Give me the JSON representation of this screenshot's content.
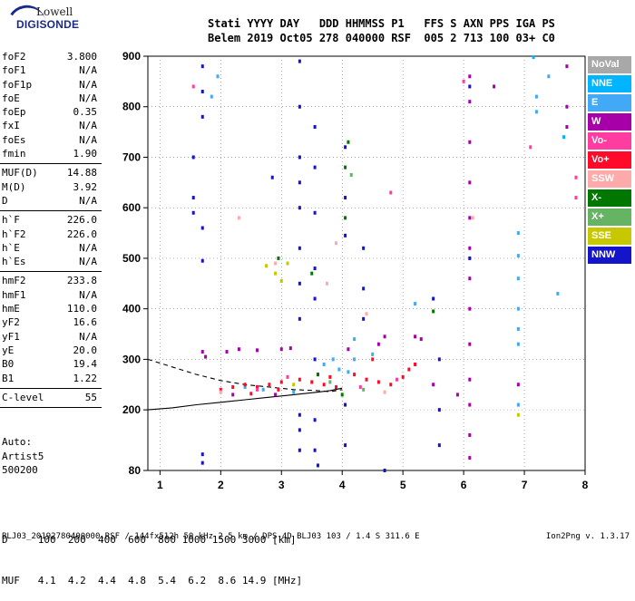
{
  "logo": {
    "line1": "Lowell",
    "line2": "DIGISONDE"
  },
  "header": {
    "row1": "Stati YYYY DAY   DDD HHMMSS P1   FFS S AXN PPS IGA PS",
    "row2": "Belem 2019 Oct05 278 040000 RSF  005 2 713 100 03+ C0"
  },
  "params": [
    {
      "label": "foF2",
      "value": "3.800"
    },
    {
      "label": "foF1",
      "value": "N/A"
    },
    {
      "label": "foF1p",
      "value": "N/A"
    },
    {
      "label": "foE",
      "value": "N/A"
    },
    {
      "label": "foEp",
      "value": "0.35"
    },
    {
      "label": "fxI",
      "value": "N/A"
    },
    {
      "label": "foEs",
      "value": "N/A"
    },
    {
      "label": "fmin",
      "value": "1.90"
    },
    {
      "sep": true
    },
    {
      "label": "MUF(D)",
      "value": "14.88"
    },
    {
      "label": "M(D)",
      "value": "3.92"
    },
    {
      "label": "D",
      "value": "N/A"
    },
    {
      "sep": true
    },
    {
      "label": "h`F",
      "value": "226.0"
    },
    {
      "label": "h`F2",
      "value": "226.0"
    },
    {
      "label": "h`E",
      "value": "N/A"
    },
    {
      "label": "h`Es",
      "value": "N/A"
    },
    {
      "sep": true
    },
    {
      "label": "hmF2",
      "value": "233.8"
    },
    {
      "label": "hmF1",
      "value": "N/A"
    },
    {
      "label": "hmE",
      "value": "110.0"
    },
    {
      "label": "yF2",
      "value": "16.6"
    },
    {
      "label": "yF1",
      "value": "N/A"
    },
    {
      "label": "yE",
      "value": "20.0"
    },
    {
      "label": "B0",
      "value": "19.4"
    },
    {
      "label": "B1",
      "value": "1.22"
    },
    {
      "sep": true
    },
    {
      "label": "C-level",
      "value": "55"
    },
    {
      "sep": true
    }
  ],
  "auto": {
    "line1": "Auto:",
    "line2": "Artist5",
    "line3": "500200"
  },
  "footer": {
    "d_row": "D     100  200  400  600  800 1000 1500 3000 [km]",
    "muf_row": "MUF   4.1  4.2  4.4  4.8  5.4  6.2  8.6 14.9 [MHz]"
  },
  "bottom_line": "BLJ03_20192780400000.RSF / 144fx512h 50 kHz 2.5 km / DPS-4D BLJ03 103 / 1.4 S 311.6 E",
  "version": "Ion2Png v. 1.3.17",
  "legend": [
    {
      "label": "NoVal",
      "color": "#a8a8a8"
    },
    {
      "label": "NNE",
      "color": "#00b4ff"
    },
    {
      "label": "E",
      "color": "#41a9f5"
    },
    {
      "label": "W",
      "color": "#a800a8"
    },
    {
      "label": "Vo-",
      "color": "#ff3ca0"
    },
    {
      "label": "Vo+",
      "color": "#ff0a28"
    },
    {
      "label": "SSW",
      "color": "#ffaaaa"
    },
    {
      "label": "X-",
      "color": "#007800"
    },
    {
      "label": "X+",
      "color": "#64b464"
    },
    {
      "label": "SSE",
      "color": "#c8c800"
    },
    {
      "label": "NNW",
      "color": "#1414c8"
    }
  ],
  "chart_data": {
    "type": "scatter",
    "xlim": [
      0.8,
      8.0
    ],
    "ylim": [
      80,
      900
    ],
    "x_ticks": [
      "1",
      "2",
      "3",
      "4",
      "5",
      "6",
      "7",
      "8"
    ],
    "y_ticks": [
      "80",
      "200",
      "300",
      "400",
      "500",
      "600",
      "700",
      "800",
      "900"
    ],
    "grid": true,
    "series": [
      {
        "color_key": "NNW",
        "points": [
          [
            1.7,
            880
          ],
          [
            1.7,
            830
          ],
          [
            1.7,
            780
          ],
          [
            1.55,
            700
          ],
          [
            1.55,
            620
          ],
          [
            1.55,
            590
          ],
          [
            1.7,
            560
          ],
          [
            1.7,
            495
          ],
          [
            1.7,
            112
          ],
          [
            1.7,
            95
          ],
          [
            2.85,
            660
          ],
          [
            3.3,
            890
          ],
          [
            3.3,
            800
          ],
          [
            3.3,
            700
          ],
          [
            3.3,
            650
          ],
          [
            3.3,
            600
          ],
          [
            3.3,
            520
          ],
          [
            3.3,
            450
          ],
          [
            3.3,
            380
          ],
          [
            3.3,
            190
          ],
          [
            3.3,
            160
          ],
          [
            3.3,
            120
          ],
          [
            3.55,
            760
          ],
          [
            3.55,
            680
          ],
          [
            3.55,
            590
          ],
          [
            3.55,
            480
          ],
          [
            3.55,
            420
          ],
          [
            3.55,
            300
          ],
          [
            3.55,
            180
          ],
          [
            3.55,
            120
          ],
          [
            3.6,
            90
          ],
          [
            4.05,
            720
          ],
          [
            4.05,
            620
          ],
          [
            4.05,
            545
          ],
          [
            4.05,
            210
          ],
          [
            4.05,
            130
          ],
          [
            4.35,
            520
          ],
          [
            4.35,
            440
          ],
          [
            4.35,
            380
          ],
          [
            5.5,
            420
          ],
          [
            5.6,
            300
          ],
          [
            5.6,
            200
          ],
          [
            5.6,
            130
          ],
          [
            6.1,
            840
          ],
          [
            6.1,
            500
          ],
          [
            4.7,
            80
          ]
        ]
      },
      {
        "color_key": "W",
        "points": [
          [
            1.7,
            315
          ],
          [
            1.75,
            305
          ],
          [
            2.1,
            315
          ],
          [
            2.3,
            320
          ],
          [
            2.6,
            318
          ],
          [
            3.0,
            320
          ],
          [
            3.15,
            322
          ],
          [
            4.1,
            320
          ],
          [
            4.6,
            330
          ],
          [
            4.7,
            345
          ],
          [
            5.2,
            345
          ],
          [
            5.3,
            340
          ],
          [
            6.1,
            860
          ],
          [
            6.1,
            810
          ],
          [
            6.1,
            730
          ],
          [
            6.1,
            650
          ],
          [
            6.1,
            580
          ],
          [
            6.1,
            520
          ],
          [
            6.1,
            460
          ],
          [
            6.1,
            400
          ],
          [
            6.1,
            330
          ],
          [
            6.1,
            260
          ],
          [
            6.1,
            210
          ],
          [
            6.1,
            150
          ],
          [
            6.1,
            105
          ],
          [
            6.5,
            840
          ],
          [
            7.7,
            880
          ],
          [
            7.7,
            800
          ],
          [
            7.7,
            760
          ],
          [
            6.9,
            250
          ],
          [
            5.5,
            250
          ],
          [
            5.9,
            230
          ],
          [
            2.2,
            230
          ],
          [
            2.9,
            230
          ]
        ]
      },
      {
        "color_key": "E",
        "points": [
          [
            1.85,
            820
          ],
          [
            1.95,
            860
          ],
          [
            3.7,
            290
          ],
          [
            3.85,
            300
          ],
          [
            3.95,
            280
          ],
          [
            4.1,
            275
          ],
          [
            4.2,
            300
          ],
          [
            4.5,
            310
          ],
          [
            4.2,
            340
          ],
          [
            6.9,
            550
          ],
          [
            6.9,
            505
          ],
          [
            6.9,
            460
          ],
          [
            6.9,
            400
          ],
          [
            6.9,
            360
          ],
          [
            6.9,
            330
          ],
          [
            6.9,
            210
          ],
          [
            7.2,
            820
          ],
          [
            7.2,
            790
          ],
          [
            7.4,
            860
          ],
          [
            7.55,
            430
          ],
          [
            5.2,
            410
          ],
          [
            2.4,
            245
          ],
          [
            2.7,
            240
          ],
          [
            3.2,
            235
          ]
        ]
      },
      {
        "color_key": "Vo+",
        "points": [
          [
            2.0,
            240
          ],
          [
            2.2,
            245
          ],
          [
            2.4,
            250
          ],
          [
            2.6,
            245
          ],
          [
            2.8,
            250
          ],
          [
            3.0,
            255
          ],
          [
            3.3,
            260
          ],
          [
            3.5,
            255
          ],
          [
            3.7,
            250
          ],
          [
            3.9,
            245
          ],
          [
            4.2,
            270
          ],
          [
            4.4,
            260
          ],
          [
            4.6,
            255
          ],
          [
            4.8,
            250
          ],
          [
            5.0,
            265
          ],
          [
            5.1,
            280
          ],
          [
            5.2,
            290
          ],
          [
            4.5,
            300
          ],
          [
            3.8,
            265
          ],
          [
            3.6,
            270
          ],
          [
            2.95,
            240
          ],
          [
            2.5,
            232
          ]
        ]
      },
      {
        "color_key": "Vo-",
        "points": [
          [
            1.55,
            840
          ],
          [
            6.0,
            850
          ],
          [
            7.1,
            720
          ],
          [
            7.85,
            660
          ],
          [
            7.85,
            620
          ],
          [
            4.8,
            630
          ],
          [
            2.6,
            240
          ],
          [
            3.1,
            265
          ],
          [
            4.3,
            245
          ],
          [
            4.9,
            260
          ]
        ]
      },
      {
        "color_key": "X-",
        "points": [
          [
            4.1,
            730
          ],
          [
            4.05,
            680
          ],
          [
            4.05,
            580
          ],
          [
            3.6,
            270
          ],
          [
            4.0,
            230
          ],
          [
            5.5,
            395
          ],
          [
            2.95,
            500
          ],
          [
            3.5,
            470
          ]
        ]
      },
      {
        "color_key": "X+",
        "points": [
          [
            4.15,
            665
          ],
          [
            3.8,
            255
          ],
          [
            4.35,
            240
          ]
        ]
      },
      {
        "color_key": "SSW",
        "points": [
          [
            2.3,
            580
          ],
          [
            2.9,
            490
          ],
          [
            3.9,
            530
          ],
          [
            3.75,
            450
          ],
          [
            4.4,
            390
          ],
          [
            6.15,
            580
          ],
          [
            2.0,
            235
          ],
          [
            4.7,
            235
          ]
        ]
      },
      {
        "color_key": "SSE",
        "points": [
          [
            2.75,
            485
          ],
          [
            2.9,
            470
          ],
          [
            3.0,
            455
          ],
          [
            3.1,
            490
          ],
          [
            6.9,
            190
          ],
          [
            3.2,
            250
          ]
        ]
      },
      {
        "color_key": "NNE",
        "points": [
          [
            7.15,
            898
          ],
          [
            7.65,
            740
          ]
        ]
      }
    ],
    "curves": [
      {
        "style": "solid",
        "points": [
          [
            0.8,
            200
          ],
          [
            1.2,
            204
          ],
          [
            1.6,
            210
          ],
          [
            2.0,
            215
          ],
          [
            2.4,
            220
          ],
          [
            2.8,
            225
          ],
          [
            3.2,
            230
          ],
          [
            3.6,
            235
          ],
          [
            3.8,
            238
          ],
          [
            4.0,
            243
          ]
        ]
      },
      {
        "style": "dashed",
        "points": [
          [
            0.8,
            300
          ],
          [
            1.2,
            285
          ],
          [
            1.6,
            270
          ],
          [
            2.0,
            258
          ],
          [
            2.4,
            250
          ],
          [
            2.8,
            245
          ],
          [
            3.2,
            240
          ],
          [
            3.6,
            238
          ],
          [
            3.8,
            236
          ],
          [
            4.0,
            240
          ]
        ]
      }
    ]
  }
}
